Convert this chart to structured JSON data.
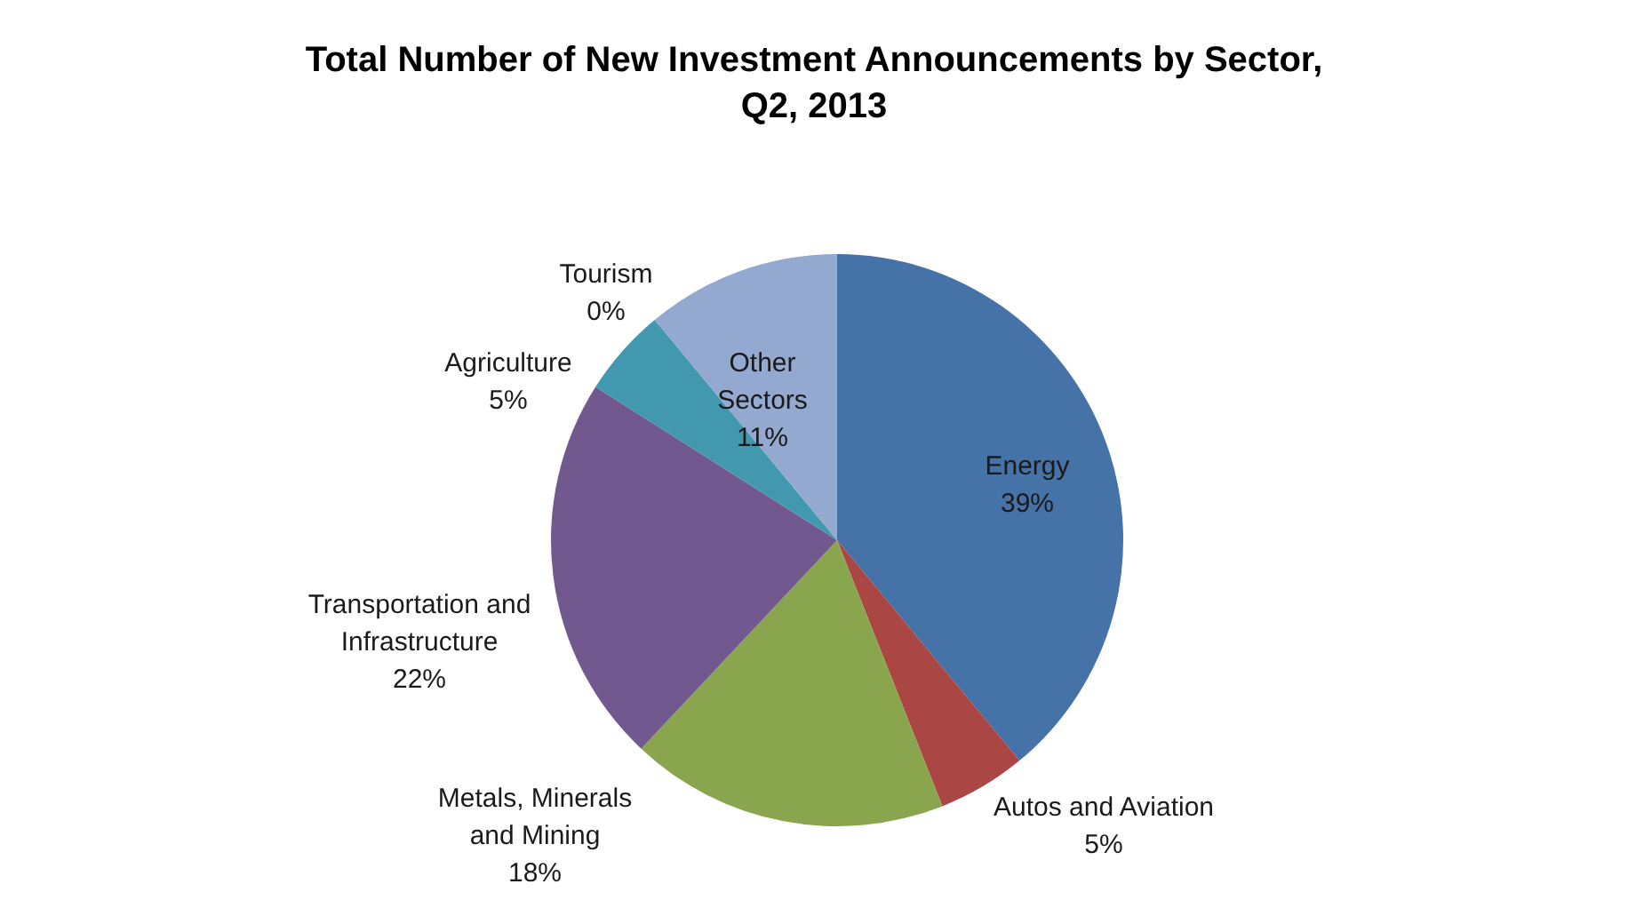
{
  "chart_data": {
    "type": "pie",
    "title": "Total Number of New Investment Announcements by Sector, Q2, 2013",
    "categories": [
      "Energy",
      "Autos and Aviation",
      "Metals, Minerals and Mining",
      "Transportation and Infrastructure",
      "Agriculture",
      "Tourism",
      "Other Sectors"
    ],
    "values": [
      39,
      5,
      18,
      22,
      5,
      0,
      11
    ],
    "value_labels": [
      "39%",
      "5%",
      "18%",
      "22%",
      "5%",
      "0%",
      "11%"
    ],
    "colors": [
      "#4572a7",
      "#aa4643",
      "#89a54e",
      "#71588f",
      "#4198af",
      "#db843d",
      "#93a9cf"
    ]
  }
}
